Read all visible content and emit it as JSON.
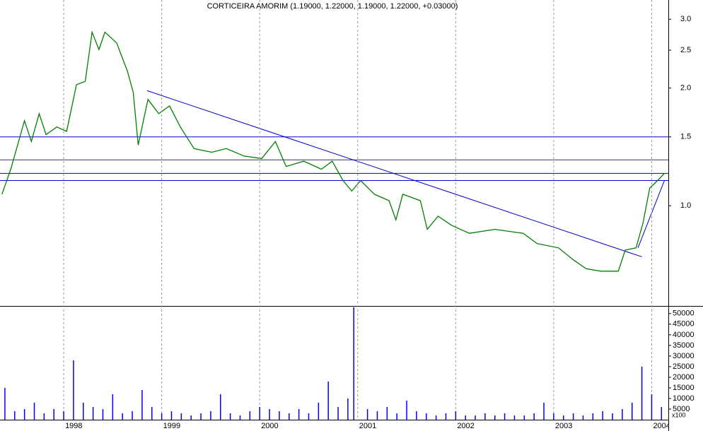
{
  "chart_data": [
    {
      "type": "line",
      "title": "CORTICEIRA AMORIM (1.19000, 1.22000, 1.19000, 1.22000, +0.03000)",
      "log_scale": true,
      "color": "#008000",
      "x": [
        1997.37,
        1997.46,
        1997.6,
        1997.67,
        1997.75,
        1997.82,
        1997.93,
        1998.03,
        1998.13,
        1998.22,
        1998.29,
        1998.36,
        1998.42,
        1998.54,
        1998.65,
        1998.71,
        1998.76,
        1998.86,
        1998.97,
        1999.08,
        1999.19,
        1999.33,
        1999.51,
        1999.66,
        1999.84,
        2000.02,
        2000.16,
        2000.27,
        2000.45,
        2000.63,
        2000.74,
        2000.85,
        2000.94,
        2001.03,
        2001.17,
        2001.32,
        2001.39,
        2001.46,
        2001.64,
        2001.71,
        2001.82,
        2001.96,
        2002.14,
        2002.4,
        2002.69,
        2002.83,
        2003.05,
        2003.19,
        2003.33,
        2003.48,
        2003.66,
        2003.73,
        2003.84,
        2003.91,
        2003.98,
        2004.06,
        2004.13
      ],
      "values": [
        1.07,
        1.24,
        1.65,
        1.46,
        1.72,
        1.52,
        1.59,
        1.55,
        2.04,
        2.08,
        2.78,
        2.51,
        2.78,
        2.61,
        2.21,
        1.95,
        1.43,
        1.87,
        1.72,
        1.8,
        1.59,
        1.4,
        1.37,
        1.4,
        1.34,
        1.32,
        1.46,
        1.26,
        1.3,
        1.24,
        1.3,
        1.16,
        1.09,
        1.16,
        1.07,
        1.03,
        0.92,
        1.07,
        1.03,
        0.87,
        0.94,
        0.89,
        0.85,
        0.87,
        0.85,
        0.8,
        0.78,
        0.73,
        0.69,
        0.68,
        0.68,
        0.77,
        0.78,
        0.9,
        1.11,
        1.16,
        1.21
      ],
      "xlim": [
        1997.35,
        2004.17
      ],
      "ylim": [
        0.554,
        3.36
      ],
      "yticks": [
        {
          "value": 1.0,
          "label": "1.0"
        },
        {
          "value": 1.5,
          "label": "1.5"
        },
        {
          "value": 2.0,
          "label": "2.0"
        },
        {
          "value": 2.5,
          "label": "2.5"
        },
        {
          "value": 3.0,
          "label": "3.0"
        }
      ],
      "hlines": [
        {
          "value": 1.5,
          "color": "#0000cc"
        },
        {
          "value": 1.31,
          "color": "#333366"
        },
        {
          "value": 1.21,
          "color": "#0000cc"
        },
        {
          "value": 1.16,
          "color": "#0000cc"
        }
      ],
      "trendlines": [
        {
          "x": [
            1998.85,
            2003.9
          ],
          "values": [
            1.97,
            0.74
          ],
          "color": "#0000cc"
        },
        {
          "x": [
            2003.86,
            2004.13
          ],
          "values": [
            0.78,
            1.16
          ],
          "color": "#0000cc"
        }
      ]
    },
    {
      "type": "bar",
      "color": "#0000ff",
      "axis_label": "x100",
      "x": [
        1997.4,
        1997.5,
        1997.6,
        1997.7,
        1997.8,
        1997.9,
        1998.0,
        1998.1,
        1998.2,
        1998.3,
        1998.4,
        1998.5,
        1998.6,
        1998.7,
        1998.8,
        1998.9,
        1999.0,
        1999.1,
        1999.2,
        1999.3,
        1999.4,
        1999.5,
        1999.6,
        1999.7,
        1999.8,
        1999.9,
        2000.0,
        2000.1,
        2000.2,
        2000.3,
        2000.4,
        2000.5,
        2000.6,
        2000.7,
        2000.8,
        2000.9,
        2000.96,
        2001.1,
        2001.2,
        2001.3,
        2001.4,
        2001.5,
        2001.6,
        2001.7,
        2001.8,
        2001.9,
        2002.0,
        2002.1,
        2002.2,
        2002.3,
        2002.4,
        2002.5,
        2002.6,
        2002.7,
        2002.8,
        2002.9,
        2003.0,
        2003.1,
        2003.2,
        2003.3,
        2003.4,
        2003.5,
        2003.6,
        2003.7,
        2003.8,
        2003.9,
        2004.0,
        2004.1
      ],
      "values": [
        15000,
        4000,
        5000,
        8000,
        3000,
        5000,
        4000,
        28000,
        8000,
        6000,
        5000,
        12000,
        3000,
        4000,
        14000,
        6000,
        3000,
        4000,
        3000,
        2000,
        3000,
        4000,
        12000,
        3000,
        2000,
        4000,
        6000,
        5000,
        4000,
        3000,
        5000,
        3000,
        8000,
        18000,
        6000,
        10000,
        53000,
        5000,
        4000,
        6000,
        3000,
        9000,
        4000,
        3000,
        2000,
        3000,
        4000,
        2000,
        2000,
        3000,
        2000,
        3000,
        2000,
        2000,
        3000,
        8000,
        3000,
        2000,
        3000,
        2000,
        3000,
        4000,
        3000,
        5000,
        8000,
        25000,
        12000,
        6000
      ],
      "xlim": [
        1997.35,
        2004.17
      ],
      "xticks": [
        1998,
        1999,
        2000,
        2001,
        2002,
        2003,
        2004
      ],
      "ylim": [
        0,
        53600
      ],
      "yticks": [
        5000,
        10000,
        15000,
        20000,
        25000,
        30000,
        35000,
        40000,
        45000,
        50000
      ]
    }
  ]
}
